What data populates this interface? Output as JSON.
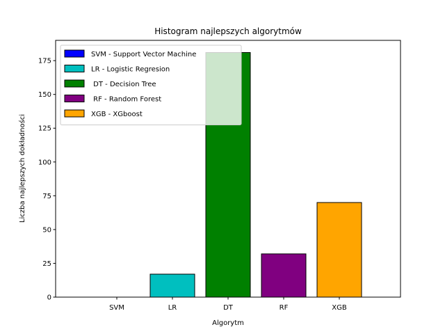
{
  "chart_data": {
    "type": "bar",
    "title": "Histogram najlepszych algorytmów",
    "xlabel": "Algorytm",
    "ylabel": "Liczba najlepszych dokładności",
    "categories": [
      "SVM",
      "LR",
      "DT",
      "RF",
      "XGB"
    ],
    "values": [
      0,
      17,
      181,
      32,
      70
    ],
    "colors": [
      "#0000ff",
      "#00bfbf",
      "#008000",
      "#800080",
      "#ffa500"
    ],
    "ylim": [
      0,
      190
    ],
    "yticks": [
      0,
      25,
      50,
      75,
      100,
      125,
      150,
      175
    ],
    "grid": false,
    "legend": {
      "placement": "top-left",
      "entries": [
        {
          "label": "SVM - Support Vector Machine",
          "color": "#0000ff"
        },
        {
          "label": "LR - Logistic Regresion",
          "color": "#00bfbf"
        },
        {
          "label": " DT - Decision Tree",
          "color": "#008000"
        },
        {
          "label": " RF - Random Forest",
          "color": "#800080"
        },
        {
          "label": "XGB - XGboost",
          "color": "#ffa500"
        }
      ]
    }
  }
}
